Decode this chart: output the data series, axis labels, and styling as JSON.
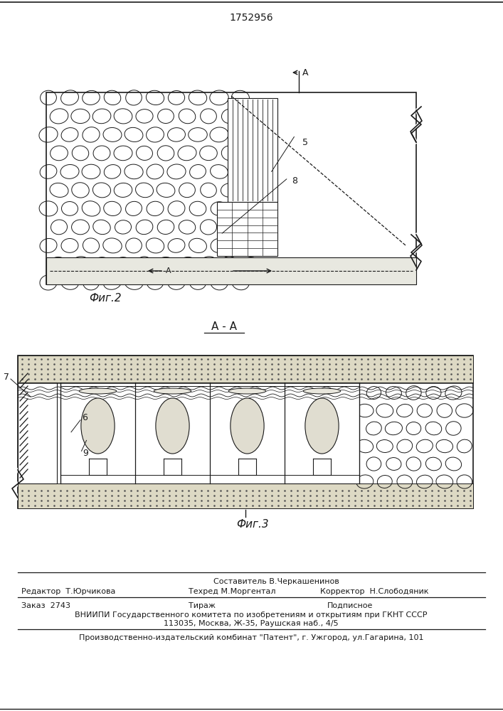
{
  "patent_number": "1752956",
  "fig2_label": "Фиг.2",
  "fig3_label": "Фиг.3",
  "section_label": "А - А",
  "label_5": "5",
  "label_6": "6",
  "label_7": "7",
  "label_8": "8",
  "label_9": "9",
  "line_color": "#1a1a1a",
  "footer_line1": "Составитель В.Черкашенинов",
  "footer_line2_left": "Редактор  Т.Юрчикова",
  "footer_line2_mid": "Техред М.Моргентал",
  "footer_line2_right": "Корректор  Н.Слободяник",
  "footer_line3_left": "Заказ  2743",
  "footer_line3_mid": "Тираж",
  "footer_line3_right": "Подписное",
  "footer_line4": "ВНИИПИ Государственного комитета по изобретениям и открытиям при ГКНТ СССР",
  "footer_line5": "113035, Москва, Ж-35, Раушская наб., 4/5",
  "footer_line6": "Производственно-издательский комбинат \"Патент\", г. Ужгород, ул.Гагарина, 101"
}
